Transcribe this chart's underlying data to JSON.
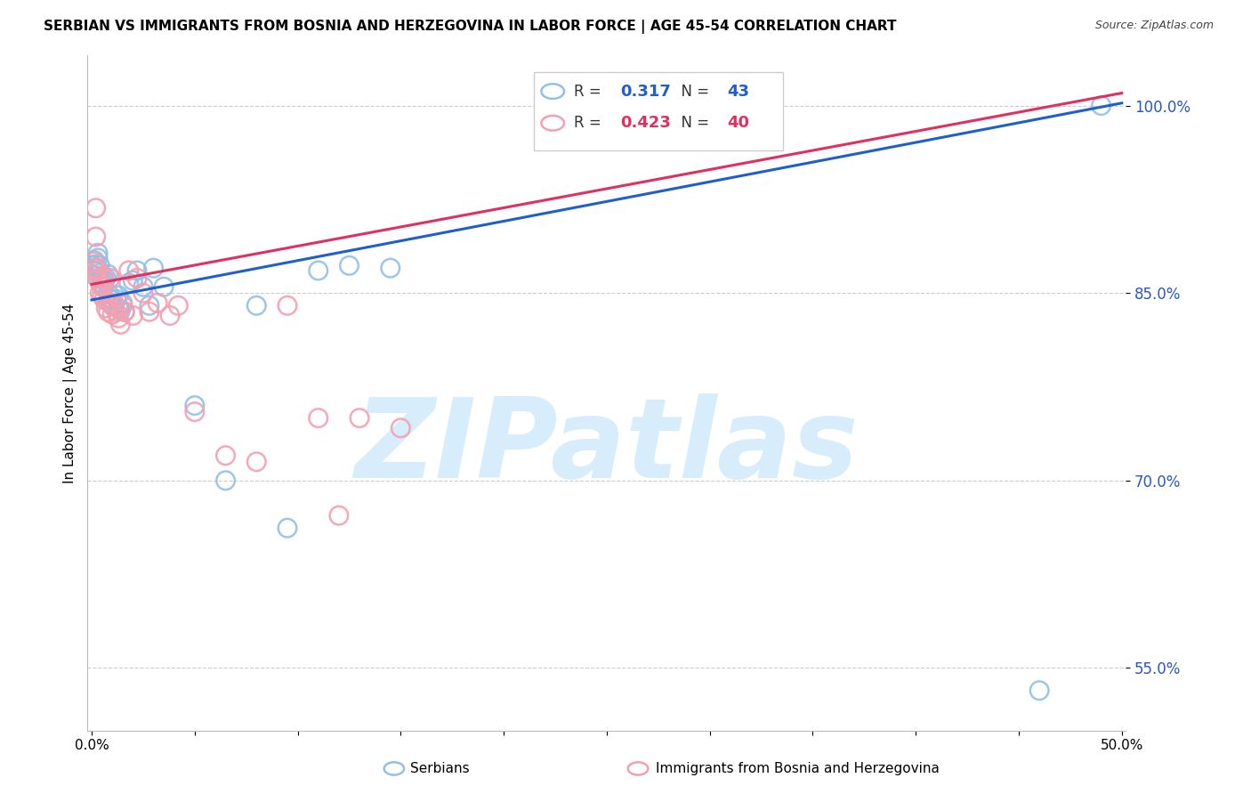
{
  "title": "SERBIAN VS IMMIGRANTS FROM BOSNIA AND HERZEGOVINA IN LABOR FORCE | AGE 45-54 CORRELATION CHART",
  "source": "Source: ZipAtlas.com",
  "ylabel": "In Labor Force | Age 45-54",
  "xlim": [
    -0.002,
    0.502
  ],
  "ylim": [
    0.5,
    1.04
  ],
  "ytick_positions": [
    0.55,
    0.7,
    0.85,
    1.0
  ],
  "ytick_labels": [
    "55.0%",
    "70.0%",
    "85.0%",
    "100.0%"
  ],
  "xtick_positions": [
    0.0,
    0.05,
    0.1,
    0.15,
    0.2,
    0.25,
    0.3,
    0.35,
    0.4,
    0.45,
    0.5
  ],
  "xtick_labels": [
    "0.0%",
    "",
    "",
    "",
    "",
    "",
    "",
    "",
    "",
    "",
    "50.0%"
  ],
  "legend_blue_r": "0.317",
  "legend_blue_n": "43",
  "legend_pink_r": "0.423",
  "legend_pink_n": "40",
  "blue_scatter_color": "#92C0E8",
  "pink_scatter_color": "#F4A0B0",
  "blue_line_color": "#1E5FCC",
  "pink_line_color": "#E03060",
  "ytick_color": "#2855C8",
  "watermark_text": "ZIPatlas",
  "watermark_color": "#D8EDFB",
  "blue_line_x": [
    0.0,
    0.5
  ],
  "blue_line_y": [
    0.8445,
    1.002
  ],
  "pink_line_x": [
    0.0,
    0.5
  ],
  "pink_line_y": [
    0.857,
    1.01
  ],
  "blue_x": [
    0.0005,
    0.001,
    0.0015,
    0.002,
    0.002,
    0.003,
    0.003,
    0.0035,
    0.004,
    0.004,
    0.005,
    0.005,
    0.006,
    0.006,
    0.007,
    0.008,
    0.008,
    0.009,
    0.01,
    0.01,
    0.011,
    0.012,
    0.013,
    0.013,
    0.014,
    0.015,
    0.016,
    0.018,
    0.02,
    0.022,
    0.025,
    0.028,
    0.03,
    0.035,
    0.05,
    0.065,
    0.08,
    0.095,
    0.11,
    0.125,
    0.145,
    0.46,
    0.49
  ],
  "blue_y": [
    0.872,
    0.868,
    0.876,
    0.873,
    0.87,
    0.882,
    0.878,
    0.868,
    0.872,
    0.866,
    0.862,
    0.858,
    0.855,
    0.86,
    0.862,
    0.865,
    0.85,
    0.845,
    0.845,
    0.84,
    0.84,
    0.845,
    0.838,
    0.848,
    0.836,
    0.842,
    0.835,
    0.858,
    0.86,
    0.868,
    0.855,
    0.84,
    0.87,
    0.855,
    0.76,
    0.7,
    0.84,
    0.662,
    0.868,
    0.872,
    0.87,
    0.532,
    1.0
  ],
  "pink_x": [
    0.0005,
    0.001,
    0.0015,
    0.002,
    0.002,
    0.003,
    0.003,
    0.004,
    0.004,
    0.005,
    0.005,
    0.006,
    0.006,
    0.007,
    0.008,
    0.008,
    0.009,
    0.01,
    0.011,
    0.012,
    0.013,
    0.014,
    0.015,
    0.016,
    0.018,
    0.02,
    0.022,
    0.025,
    0.028,
    0.032,
    0.038,
    0.042,
    0.05,
    0.065,
    0.08,
    0.095,
    0.11,
    0.13,
    0.15,
    0.12
  ],
  "pink_y": [
    0.865,
    0.875,
    0.87,
    0.918,
    0.895,
    0.862,
    0.868,
    0.858,
    0.85,
    0.855,
    0.848,
    0.862,
    0.845,
    0.838,
    0.843,
    0.835,
    0.862,
    0.833,
    0.84,
    0.835,
    0.83,
    0.825,
    0.84,
    0.835,
    0.868,
    0.832,
    0.862,
    0.85,
    0.835,
    0.842,
    0.832,
    0.84,
    0.755,
    0.72,
    0.715,
    0.84,
    0.75,
    0.75,
    0.742,
    0.672
  ]
}
